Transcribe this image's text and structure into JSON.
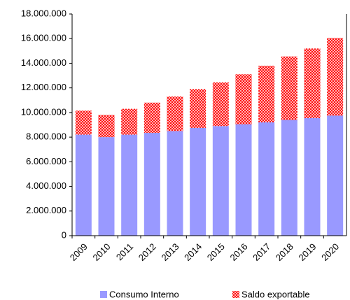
{
  "chart_data": {
    "type": "stacked_bar",
    "categories": [
      "2009",
      "2010",
      "2011",
      "2012",
      "2013",
      "2014",
      "2015",
      "2016",
      "2017",
      "2018",
      "2019",
      "2020"
    ],
    "series": [
      {
        "name": "Consumo Interno",
        "color": "#9999ff",
        "values": [
          8200000,
          8000000,
          8200000,
          8350000,
          8500000,
          8750000,
          8900000,
          9050000,
          9200000,
          9400000,
          9550000,
          9750000
        ]
      },
      {
        "name": "Saldo exportable",
        "color": "#ff0000",
        "values": [
          1950000,
          1800000,
          2100000,
          2450000,
          2800000,
          3150000,
          3550000,
          4050000,
          4600000,
          5150000,
          5650000,
          6300000
        ]
      }
    ],
    "ylim": [
      0,
      18000000
    ],
    "yticks": [
      0,
      {
        "value": 2000000,
        "label": "2.000.000"
      },
      {
        "value": 4000000,
        "label": "4.000.000"
      },
      {
        "value": 6000000,
        "label": "6.000.000"
      },
      {
        "value": 8000000,
        "label": "8.000.000"
      },
      {
        "value": 10000000,
        "label": "10.000.000"
      },
      {
        "value": 12000000,
        "label": "12.000.000"
      },
      {
        "value": 14000000,
        "label": "14.000.000"
      },
      {
        "value": 16000000,
        "label": "16.000.000"
      },
      {
        "value": 18000000,
        "label": "18.000.000"
      }
    ],
    "legend": "bottom"
  }
}
